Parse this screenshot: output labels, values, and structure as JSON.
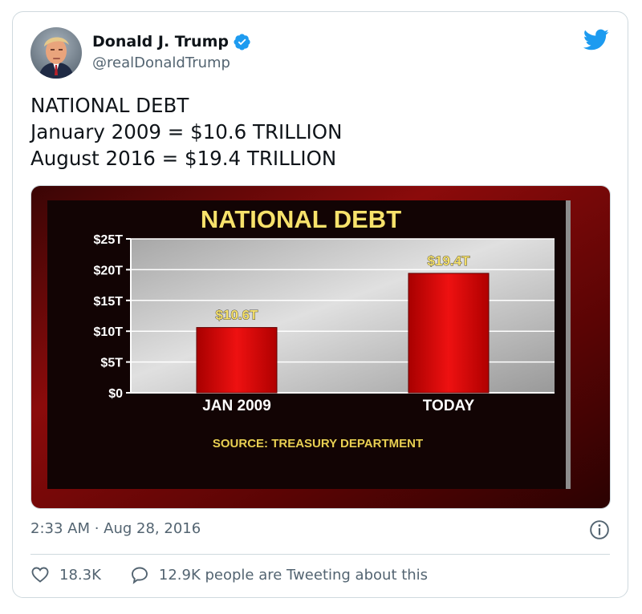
{
  "tweet": {
    "author_name": "Donald J. Trump",
    "author_handle": "@realDonaldTrump",
    "text": "NATIONAL DEBT\nJanuary 2009 = $10.6 TRILLION\nAugust 2016 = $19.4 TRILLION",
    "timestamp": "2:33 AM · Aug 28, 2016",
    "likes": "18.3K",
    "retweets_label": "12.9K people are Tweeting about this"
  },
  "icons": {
    "verified": "verified-badge-icon",
    "brand": "twitter-bird-icon",
    "info": "info-icon",
    "like": "heart-icon",
    "reply": "speech-bubble-icon"
  },
  "colors": {
    "brand_blue": "#1d9bf0",
    "chart_title": "#f7e26b",
    "bar_red": "#dd0d0d",
    "source_text": "#e8cf52"
  },
  "chart_data": {
    "type": "bar",
    "title": "NATIONAL DEBT",
    "categories": [
      "JAN 2009",
      "TODAY"
    ],
    "values": [
      10.6,
      19.4
    ],
    "value_labels": [
      "$10.6T",
      "$19.4T"
    ],
    "ytick_labels": [
      "$0",
      "$5T",
      "$10T",
      "$15T",
      "$20T",
      "$25T"
    ],
    "yticks": [
      0,
      5,
      10,
      15,
      20,
      25
    ],
    "ylim": [
      0,
      25
    ],
    "grid": true,
    "source": "SOURCE: TREASURY DEPARTMENT"
  }
}
